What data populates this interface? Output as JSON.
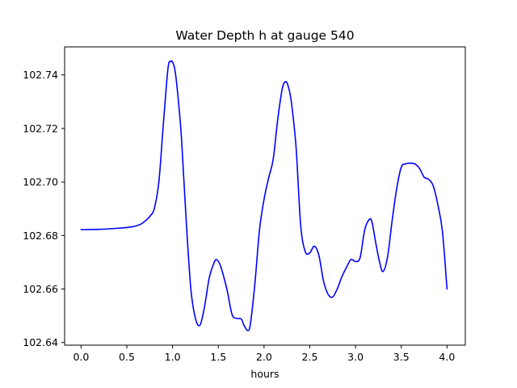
{
  "chart_data": {
    "type": "line",
    "title": "Water Depth h at gauge 540",
    "xlabel": "hours",
    "ylabel": "",
    "xlim": [
      -0.18,
      4.2
    ],
    "ylim": [
      102.639,
      102.7505
    ],
    "grid": false,
    "xticks": [
      0.0,
      0.5,
      1.0,
      1.5,
      2.0,
      2.5,
      3.0,
      3.5,
      4.0
    ],
    "xtick_labels": [
      "0.0",
      "0.5",
      "1.0",
      "1.5",
      "2.0",
      "2.5",
      "3.0",
      "3.5",
      "4.0"
    ],
    "yticks": [
      102.64,
      102.66,
      102.68,
      102.7,
      102.72,
      102.74
    ],
    "ytick_labels": [
      "102.64",
      "102.66",
      "102.68",
      "102.70",
      "102.72",
      "102.74"
    ],
    "series": [
      {
        "color": "#0000ff",
        "x": [
          0.0,
          0.2,
          0.4,
          0.55,
          0.65,
          0.72,
          0.76,
          0.8,
          0.85,
          0.9,
          0.95,
          0.98,
          1.0,
          1.03,
          1.07,
          1.1,
          1.15,
          1.2,
          1.25,
          1.3,
          1.35,
          1.4,
          1.45,
          1.48,
          1.52,
          1.56,
          1.6,
          1.65,
          1.7,
          1.75,
          1.78,
          1.82,
          1.85,
          1.9,
          1.95,
          2.0,
          2.05,
          2.1,
          2.15,
          2.2,
          2.24,
          2.27,
          2.3,
          2.35,
          2.4,
          2.45,
          2.5,
          2.55,
          2.6,
          2.65,
          2.7,
          2.75,
          2.8,
          2.85,
          2.9,
          2.95,
          3.0,
          3.05,
          3.1,
          3.15,
          3.18,
          3.22,
          3.26,
          3.3,
          3.35,
          3.4,
          3.45,
          3.5,
          3.55,
          3.6,
          3.65,
          3.7,
          3.75,
          3.8,
          3.85,
          3.9,
          3.95,
          4.0
        ],
        "y": [
          102.6822,
          102.6823,
          102.6827,
          102.6832,
          102.6842,
          102.686,
          102.6875,
          102.69,
          102.7,
          102.722,
          102.7425,
          102.745,
          102.7448,
          102.741,
          102.728,
          102.715,
          102.685,
          102.66,
          102.649,
          102.6465,
          102.6535,
          102.664,
          102.6695,
          102.671,
          102.669,
          102.6645,
          102.659,
          102.6505,
          102.649,
          102.6488,
          102.6465,
          102.6445,
          102.6468,
          102.662,
          102.682,
          102.6935,
          102.7015,
          102.7085,
          102.7235,
          102.735,
          102.7375,
          102.735,
          102.7295,
          102.713,
          102.684,
          102.674,
          102.6735,
          102.676,
          102.6725,
          102.663,
          102.658,
          102.657,
          102.66,
          102.6645,
          102.668,
          102.671,
          102.6703,
          102.6717,
          102.682,
          102.686,
          102.685,
          102.6775,
          102.6705,
          102.6665,
          102.672,
          102.6855,
          102.6975,
          102.7055,
          102.7068,
          102.707,
          102.7067,
          102.705,
          102.7018,
          102.701,
          102.6985,
          102.6915,
          102.6815,
          102.66
        ]
      }
    ]
  }
}
